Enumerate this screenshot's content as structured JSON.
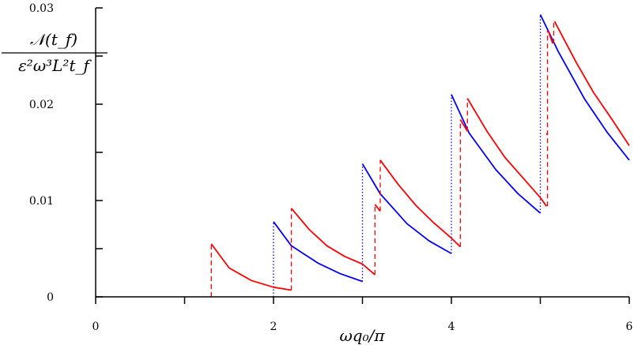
{
  "chart_data": {
    "type": "line",
    "xlabel": "ωq₀/π",
    "ylabel": {
      "numerator": "𝒩(t_f)",
      "denominator": "ε²ω³L²t_f"
    },
    "xlim": [
      0,
      6
    ],
    "ylim": [
      0,
      0.03
    ],
    "x_ticks": [
      0,
      1,
      2,
      3,
      4,
      5,
      6
    ],
    "x_tick_labels": [
      "0",
      "",
      "2",
      "",
      "4",
      "",
      "6"
    ],
    "y_ticks": [
      0,
      0.005,
      0.01,
      0.015,
      0.02,
      0.025,
      0.03
    ],
    "y_tick_labels": [
      "0",
      "",
      "0.01",
      "",
      "0.02",
      "",
      "0.03"
    ],
    "grid": false,
    "series": [
      {
        "color": "#0000ff",
        "style": "solid",
        "segments": [
          [
            [
              2.0,
              0.0078
            ],
            [
              2.2,
              0.0053
            ],
            [
              2.5,
              0.0035
            ],
            [
              2.75,
              0.0024
            ],
            [
              3.0,
              0.0016
            ]
          ],
          [
            [
              3.0,
              0.0138
            ],
            [
              3.2,
              0.0107
            ],
            [
              3.5,
              0.0076
            ],
            [
              3.75,
              0.0058
            ],
            [
              4.0,
              0.0045
            ]
          ],
          [
            [
              4.0,
              0.021
            ],
            [
              4.2,
              0.017
            ],
            [
              4.5,
              0.0132
            ],
            [
              4.75,
              0.0107
            ],
            [
              5.0,
              0.0087
            ]
          ],
          [
            [
              5.0,
              0.0293
            ],
            [
              5.2,
              0.0255
            ],
            [
              5.5,
              0.0205
            ],
            [
              5.75,
              0.0171
            ],
            [
              6.0,
              0.0142
            ]
          ]
        ]
      },
      {
        "color": "#0000ff",
        "style": "dotted",
        "segments": [
          [
            [
              2.0,
              0.0
            ],
            [
              2.0,
              0.0078
            ]
          ],
          [
            [
              3.0,
              0.0016
            ],
            [
              3.0,
              0.0138
            ]
          ],
          [
            [
              4.0,
              0.0045
            ],
            [
              4.0,
              0.021
            ]
          ],
          [
            [
              5.0,
              0.0087
            ],
            [
              5.0,
              0.0293
            ]
          ]
        ]
      },
      {
        "color": "#ff0000",
        "style": "solid",
        "segments": [
          [
            [
              1.3,
              0.0055
            ],
            [
              1.5,
              0.003
            ],
            [
              1.75,
              0.0017
            ],
            [
              2.0,
              0.001
            ],
            [
              2.2,
              0.0007
            ]
          ],
          [
            [
              2.2,
              0.0092
            ],
            [
              2.4,
              0.007
            ],
            [
              2.6,
              0.0053
            ],
            [
              2.8,
              0.0042
            ],
            [
              3.0,
              0.0034
            ],
            [
              3.14,
              0.0023
            ]
          ],
          [
            [
              3.14,
              0.0096
            ],
            [
              3.2,
              0.0089
            ]
          ],
          [
            [
              3.2,
              0.0142
            ],
            [
              3.4,
              0.0117
            ],
            [
              3.6,
              0.0095
            ],
            [
              3.8,
              0.0077
            ],
            [
              4.0,
              0.0061
            ],
            [
              4.1,
              0.0052
            ]
          ],
          [
            [
              4.1,
              0.0184
            ],
            [
              4.18,
              0.0172
            ]
          ],
          [
            [
              4.18,
              0.0206
            ],
            [
              4.4,
              0.0172
            ],
            [
              4.6,
              0.0145
            ],
            [
              4.8,
              0.0124
            ],
            [
              5.0,
              0.0103
            ],
            [
              5.07,
              0.0094
            ]
          ],
          [
            [
              5.07,
              0.017
            ],
            [
              5.08,
              0.0168
            ]
          ],
          [
            [
              5.09,
              0.0276
            ],
            [
              5.14,
              0.0263
            ]
          ],
          [
            [
              5.16,
              0.0286
            ],
            [
              5.4,
              0.0244
            ],
            [
              5.6,
              0.0212
            ],
            [
              5.8,
              0.0185
            ],
            [
              6.0,
              0.0157
            ]
          ]
        ]
      },
      {
        "color": "#ff0000",
        "style": "dashed",
        "segments": [
          [
            [
              1.3,
              0.0
            ],
            [
              1.3,
              0.0055
            ]
          ],
          [
            [
              2.2,
              0.0007
            ],
            [
              2.2,
              0.0092
            ]
          ],
          [
            [
              3.14,
              0.0023
            ],
            [
              3.14,
              0.0096
            ]
          ],
          [
            [
              3.2,
              0.0089
            ],
            [
              3.2,
              0.0142
            ]
          ],
          [
            [
              4.1,
              0.0052
            ],
            [
              4.1,
              0.0184
            ]
          ],
          [
            [
              4.18,
              0.0172
            ],
            [
              4.18,
              0.0206
            ]
          ],
          [
            [
              5.08,
              0.0094
            ],
            [
              5.08,
              0.0276
            ]
          ],
          [
            [
              5.15,
              0.0263
            ],
            [
              5.15,
              0.0286
            ]
          ]
        ]
      }
    ]
  }
}
